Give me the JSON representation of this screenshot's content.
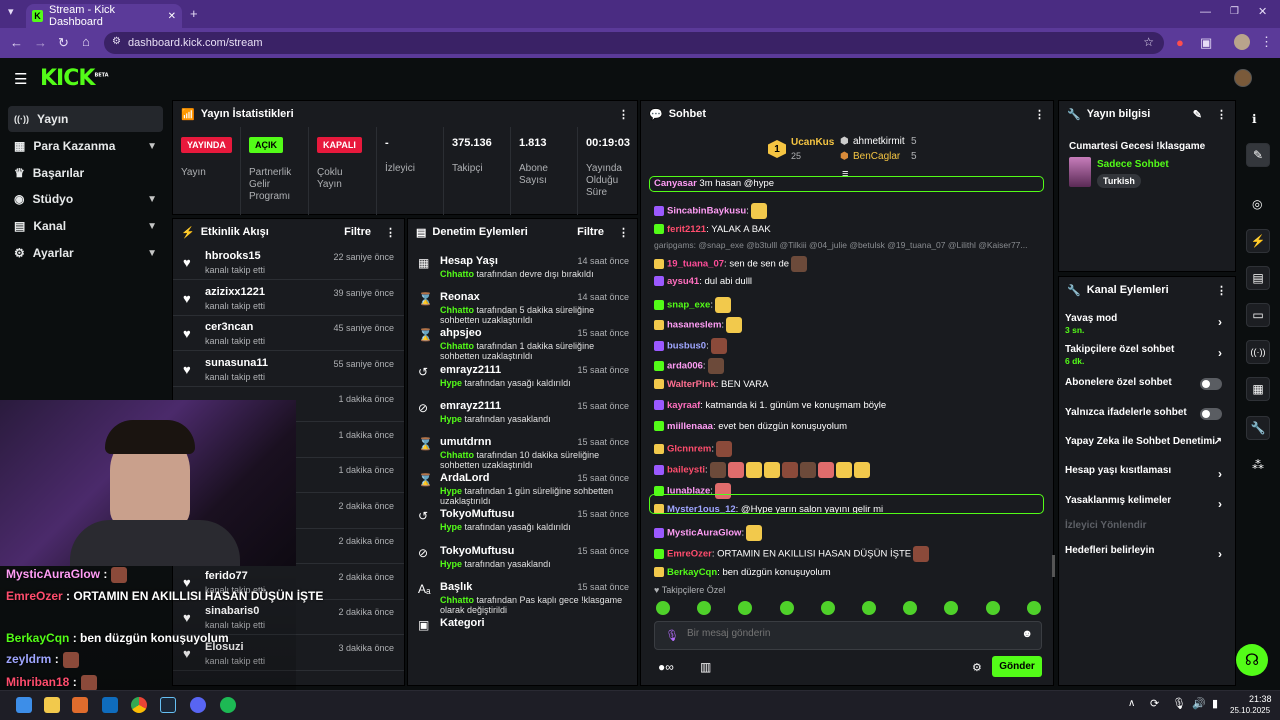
{
  "browser": {
    "tab_title": "Stream - Kick Dashboard",
    "url": "dashboard.kick.com/stream",
    "new_tab": "+",
    "close": "✕"
  },
  "header": {
    "logo": "KICK",
    "logo_beta": "BETA"
  },
  "nav": [
    {
      "label": "Yayın",
      "icon": "signal-icon"
    },
    {
      "label": "Para Kazanma",
      "icon": "money-icon"
    },
    {
      "label": "Başarılar",
      "icon": "trophy-icon"
    },
    {
      "label": "Stüdyo",
      "icon": "studio-icon"
    },
    {
      "label": "Kanal",
      "icon": "channel-icon"
    },
    {
      "label": "Ayarlar",
      "icon": "gear-icon"
    }
  ],
  "stats": {
    "title": "Yayın İstatistikleri",
    "cols": [
      {
        "badge": "YAYINDA",
        "label": "Yayın"
      },
      {
        "badge": "AÇIK",
        "label": "Partnerlik Gelir Programı"
      },
      {
        "badge": "KAPALI",
        "label": "Çoklu Yayın"
      },
      {
        "value": "-",
        "label": "İzleyici"
      },
      {
        "value": "375.136",
        "label": "Takipçi"
      },
      {
        "value": "1.813",
        "label": "Abone Sayısı"
      },
      {
        "value": "00:19:03",
        "label": "Yayında Olduğu Süre"
      }
    ]
  },
  "events": {
    "title": "Etkinlik Akışı",
    "filter": "Filtre",
    "rows": [
      {
        "name": "hbrooks15",
        "sub": "kanalı takip etti",
        "time": "22 saniye önce"
      },
      {
        "name": "azizixx1221",
        "sub": "kanalı takip etti",
        "time": "39 saniye önce"
      },
      {
        "name": "cer3ncan",
        "sub": "kanalı takip etti",
        "time": "45 saniye önce"
      },
      {
        "name": "sunasuna11",
        "sub": "kanalı takip etti",
        "time": "55 saniye önce"
      },
      {
        "name": "",
        "sub": "",
        "time": "1 dakika önce"
      },
      {
        "name": "",
        "sub": "",
        "time": "1 dakika önce"
      },
      {
        "name": "",
        "sub": "",
        "time": "1 dakika önce"
      },
      {
        "name": "",
        "sub": "",
        "time": "2 dakika önce"
      },
      {
        "name": "",
        "sub": "",
        "time": "2 dakika önce"
      },
      {
        "name": "ferido77",
        "sub": "kanalı takip etti",
        "time": "2 dakika önce"
      },
      {
        "name": "sinabaris0",
        "sub": "kanalı takip etti",
        "time": "2 dakika önce"
      },
      {
        "name": "Elosuzi",
        "sub": "kanalı takip etti",
        "time": "3 dakika önce"
      }
    ]
  },
  "moderation": {
    "title": "Denetim Eylemleri",
    "filter": "Filtre",
    "rows": [
      {
        "name": "Hesap Yaşı",
        "time": "14 saat önce",
        "actor": "Chhatto",
        "desc": " tarafından devre dışı bırakıldı",
        "icon": "calendar-icon"
      },
      {
        "name": "Reonax",
        "time": "14 saat önce",
        "actor": "Chhatto",
        "desc": " tarafından 5 dakika süreliğine sohbetten uzaklaştırıldı",
        "icon": "hourglass-icon"
      },
      {
        "name": "ahpsjeo",
        "time": "15 saat önce",
        "actor": "Chhatto",
        "desc": " tarafından 1 dakika süreliğine sohbetten uzaklaştırıldı",
        "icon": "hourglass-icon"
      },
      {
        "name": "emrayz2111",
        "time": "15 saat önce",
        "actor": "Hype",
        "desc": " tarafından yasağı kaldırıldı",
        "icon": "undo-icon"
      },
      {
        "name": "emrayz2111",
        "time": "15 saat önce",
        "actor": "Hype",
        "desc": " tarafından yasaklandı",
        "icon": "ban-icon"
      },
      {
        "name": "umutdrnn",
        "time": "15 saat önce",
        "actor": "Chhatto",
        "desc": " tarafından 10 dakika süreliğine sohbetten uzaklaştırıldı",
        "icon": "hourglass-icon"
      },
      {
        "name": "ArdaLord",
        "time": "15 saat önce",
        "actor": "Hype",
        "desc": " tarafından 1 gün süreliğine sohbetten uzaklaştırıldı",
        "icon": "hourglass-icon"
      },
      {
        "name": "TokyoMuftusu",
        "time": "15 saat önce",
        "actor": "Hype",
        "desc": " tarafından yasağı kaldırıldı",
        "icon": "undo-icon"
      },
      {
        "name": "TokyoMuftusu",
        "time": "15 saat önce",
        "actor": "Hype",
        "desc": " tarafından yasaklandı",
        "icon": "ban-icon"
      },
      {
        "name": "Başlık",
        "time": "15 saat önce",
        "actor": "Chhatto",
        "desc": " tarafından Pas kaplı gece !klasgame olarak değiştirildi",
        "icon": "text-icon"
      },
      {
        "name": "Kategori",
        "time": "",
        "actor": "",
        "desc": "",
        "icon": "category-icon"
      }
    ]
  },
  "chat": {
    "title": "Sohbet",
    "top": [
      {
        "rank": "1",
        "name": "UcanKus",
        "count": "25"
      },
      {
        "rank": "",
        "name": "ahmetkirmit",
        "count": "5"
      },
      {
        "rank": "",
        "name": "BenCaglar",
        "count": "5"
      }
    ],
    "reply_context": "garipgams: @snap_exe @b3tulll @Tilkiii @04_julie @betulsk @19_tuana_07 @Lilithl @Kaiser77...",
    "messages": [
      {
        "user": "SincabinBaykusu",
        "color": "#ff9df5",
        "text": ""
      },
      {
        "user": "ferit2121",
        "color": "#ff4d6d",
        "text": " YALAK A BAK"
      },
      {
        "user": "19_tuana_07",
        "color": "#ff4d9a",
        "text": " sen de sen de"
      },
      {
        "user": "aysu41",
        "color": "#ff6fbf",
        "text": " dul abi dulll"
      },
      {
        "user": "snap_exe",
        "color": "#53fc18",
        "text": ""
      },
      {
        "user": "hasaneslem",
        "color": "#ff9df5",
        "text": ""
      },
      {
        "user": "busbus0",
        "color": "#9fa6ff",
        "text": ""
      },
      {
        "user": "arda006",
        "color": "#ff9df5",
        "text": ""
      },
      {
        "user": "WalterPink",
        "color": "#ff6f91",
        "text": " BEN VARA"
      },
      {
        "user": "kayraaf",
        "color": "#ff6fbf",
        "text": " katmanda ki 1. günüm ve konuşmam böyle"
      },
      {
        "user": "miillenaaa",
        "color": "#ff9df5",
        "text": " evet ben düzgün konuşuyolum"
      },
      {
        "user": "Glcnnrem",
        "color": "#ff4d6d",
        "text": ""
      },
      {
        "user": "baileysti",
        "color": "#ff4d6d",
        "text": ""
      },
      {
        "user": "lunablaze",
        "color": "#ff9df5",
        "text": ""
      },
      {
        "user": "Myster1ous_12",
        "color": "#9fa6ff",
        "text": " @Hype yarın salon yayını gelir mi"
      },
      {
        "user": "MysticAuraGlow",
        "color": "#ff9df5",
        "text": ""
      },
      {
        "user": "EmreOzer",
        "color": "#ff4d6d",
        "text": " ORTAMIN EN AKILLISI HASAN DÜŞÜN İŞTE"
      },
      {
        "user": "BerkayCqn",
        "color": "#53fc18",
        "text": " ben düzgün konuşuyolum"
      }
    ],
    "first_partial": {
      "user": "Canyasar",
      "text": " 3m hasan @hype"
    },
    "followers_only": "Takipçilere Özel",
    "input_placeholder": "Bir mesaj gönderin",
    "send": "Gönder"
  },
  "stream_info": {
    "title": "Yayın bilgisi",
    "stream_title": "Cumartesi Gecesi !klasgame",
    "category": "Sadece Sohbet",
    "tag": "Turkish"
  },
  "channel_actions": {
    "title": "Kanal Eylemleri",
    "rows": [
      {
        "label": "Yavaş mod",
        "sub": "3 sn.",
        "kind": "chevron"
      },
      {
        "label": "Takipçilere özel sohbet",
        "sub": "6 dk.",
        "kind": "chevron"
      },
      {
        "label": "Abonelere özel sohbet",
        "sub": "",
        "kind": "toggle"
      },
      {
        "label": "Yalnızca ifadelerle sohbet",
        "sub": "",
        "kind": "toggle"
      },
      {
        "label": "Yapay Zeka ile Sohbet Denetimi",
        "sub": "",
        "kind": "external"
      },
      {
        "label": "Hesap yaşı kısıtlaması",
        "sub": "",
        "kind": "chevron"
      },
      {
        "label": "Yasaklanmış kelimeler",
        "sub": "",
        "kind": "chevron"
      },
      {
        "label": "İzleyici Yönlendir",
        "sub": "",
        "kind": "disabled"
      },
      {
        "label": "Hedefleri belirleyin",
        "sub": "",
        "kind": "chevron"
      }
    ]
  },
  "overlay_chat": [
    {
      "user": "MysticAuraGlow",
      "text": " :",
      "color": "#ff9df5"
    },
    {
      "user": "EmreOzer",
      "text": " : ORTAMIN EN AKILLISI HASAN DÜŞÜN İŞTE",
      "color": "#ff4d6d"
    },
    {
      "user": "BerkayCqn",
      "text": " : ben düzgün konuşuyolum",
      "color": "#53fc18"
    },
    {
      "user": "zeyldrm",
      "text": " :",
      "color": "#9fa6ff"
    },
    {
      "user": "Mihriban18",
      "text": " :",
      "color": "#ff4d6d"
    }
  ],
  "taskbar": {
    "time": "21:38",
    "date": "25.10.2025"
  },
  "colors": {
    "accent": "#53fc18",
    "live": "#e8193c",
    "browser": "#4a2c82"
  }
}
